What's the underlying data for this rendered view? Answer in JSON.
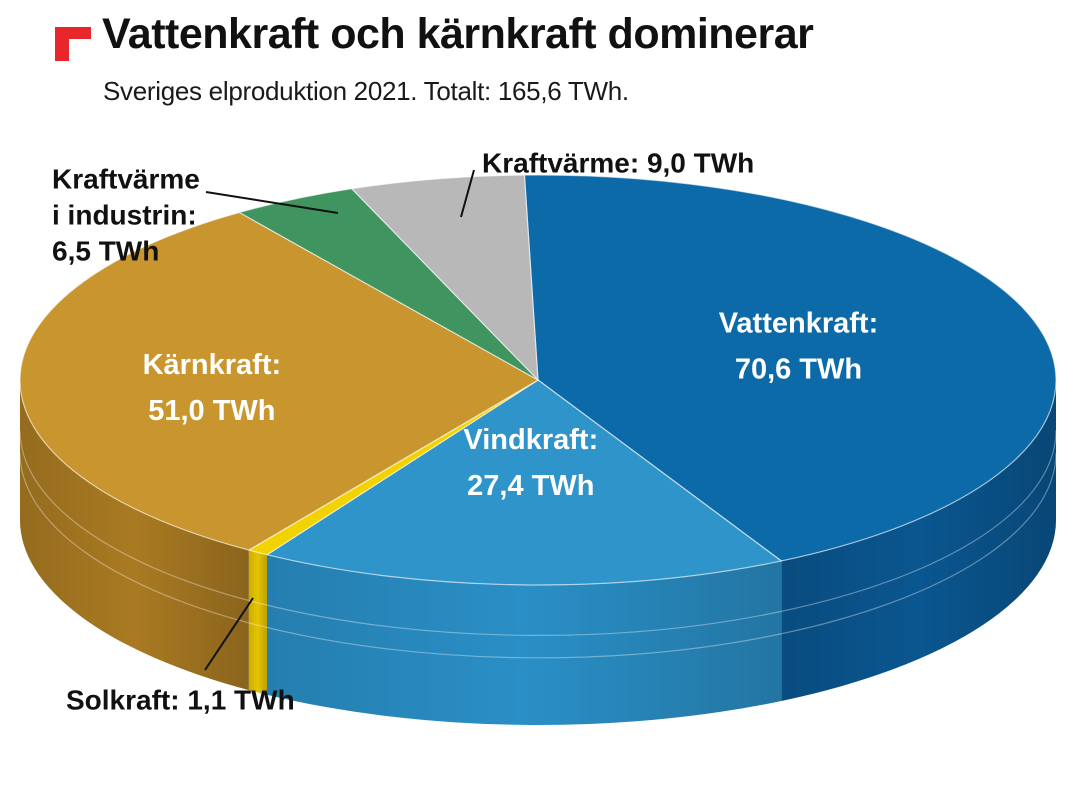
{
  "header": {
    "title": "Vattenkraft och kärnkraft dominerar",
    "subtitle": "Sveriges elproduktion 2021. Totalt: 165,6 TWh."
  },
  "colors": {
    "logo": "#e8262b"
  },
  "chart_data": {
    "type": "pie",
    "style": "3d",
    "unit": "TWh",
    "total": 165.6,
    "slices": [
      {
        "name": "Vattenkraft",
        "value": 70.6,
        "label_lines": [
          "Vattenkraft:",
          "70,6 TWh"
        ],
        "color": "#0d6aa8",
        "side_color": "#0a5690",
        "label_color": "#ffffff"
      },
      {
        "name": "Vindkraft",
        "value": 27.4,
        "label_lines": [
          "Vindkraft:",
          "27,4 TWh"
        ],
        "color": "#2e94c9",
        "side_color": "#2a8fc6",
        "label_color": "#ffffff"
      },
      {
        "name": "Solkraft",
        "value": 1.1,
        "label_lines": [
          "Solkraft: 1,1 TWh"
        ],
        "color": "#f2d300",
        "side_color": "#e5c400",
        "label_color": "#111111"
      },
      {
        "name": "Kärnkraft",
        "value": 51.0,
        "label_lines": [
          "Kärnkraft:",
          "51,0 TWh"
        ],
        "color": "#c9952e",
        "side_color": "#a97a22",
        "label_color": "#ffffff"
      },
      {
        "name": "Kraftvärme i industrin",
        "value": 6.5,
        "label_lines": [
          "Kraftvärme",
          "i industrin:",
          "6,5 TWh"
        ],
        "color": "#3f9460",
        "side_color": "#2f7a4c",
        "label_color": "#111111"
      },
      {
        "name": "Kraftvärme",
        "value": 9.0,
        "label_lines": [
          "Kraftvärme: 9,0 TWh"
        ],
        "color": "#b8b8b8",
        "side_color": "#9a9a9a",
        "label_color": "#111111"
      }
    ]
  }
}
